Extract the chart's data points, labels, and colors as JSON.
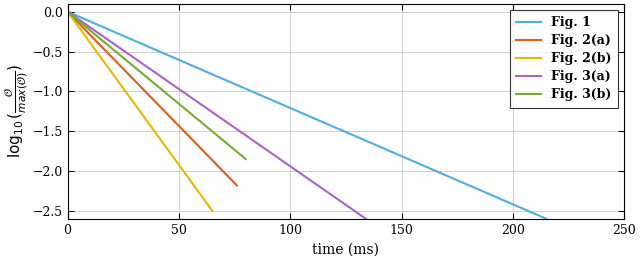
{
  "lines": [
    {
      "label": "Fig. 1",
      "color": "#4daedf",
      "x_end": 215,
      "y_end": -2.6,
      "linewidth": 1.5
    },
    {
      "label": "Fig. 2(a)",
      "color": "#d95f1a",
      "x_end": 76,
      "y_end": -2.18,
      "linewidth": 1.5
    },
    {
      "label": "Fig. 2(b)",
      "color": "#e6b800",
      "x_end": 65,
      "y_end": -2.5,
      "linewidth": 1.5
    },
    {
      "label": "Fig. 3(a)",
      "color": "#b060c8",
      "x_end": 135,
      "y_end": -2.62,
      "linewidth": 1.5
    },
    {
      "label": "Fig. 3(b)",
      "color": "#77ac30",
      "x_end": 80,
      "y_end": -1.85,
      "linewidth": 1.5
    }
  ],
  "xlim": [
    0,
    250
  ],
  "ylim": [
    -2.6,
    0.1
  ],
  "xticks": [
    0,
    50,
    100,
    150,
    200,
    250
  ],
  "yticks": [
    0,
    -0.5,
    -1.0,
    -1.5,
    -2.0,
    -2.5
  ],
  "xlabel": "time (ms)",
  "legend_loc": "upper right",
  "grid_color": "#c8c8c8",
  "background_color": "#ffffff",
  "legend_fontsize": 9,
  "axis_fontsize": 10,
  "tick_fontsize": 9,
  "figwidth": 6.4,
  "figheight": 2.6
}
